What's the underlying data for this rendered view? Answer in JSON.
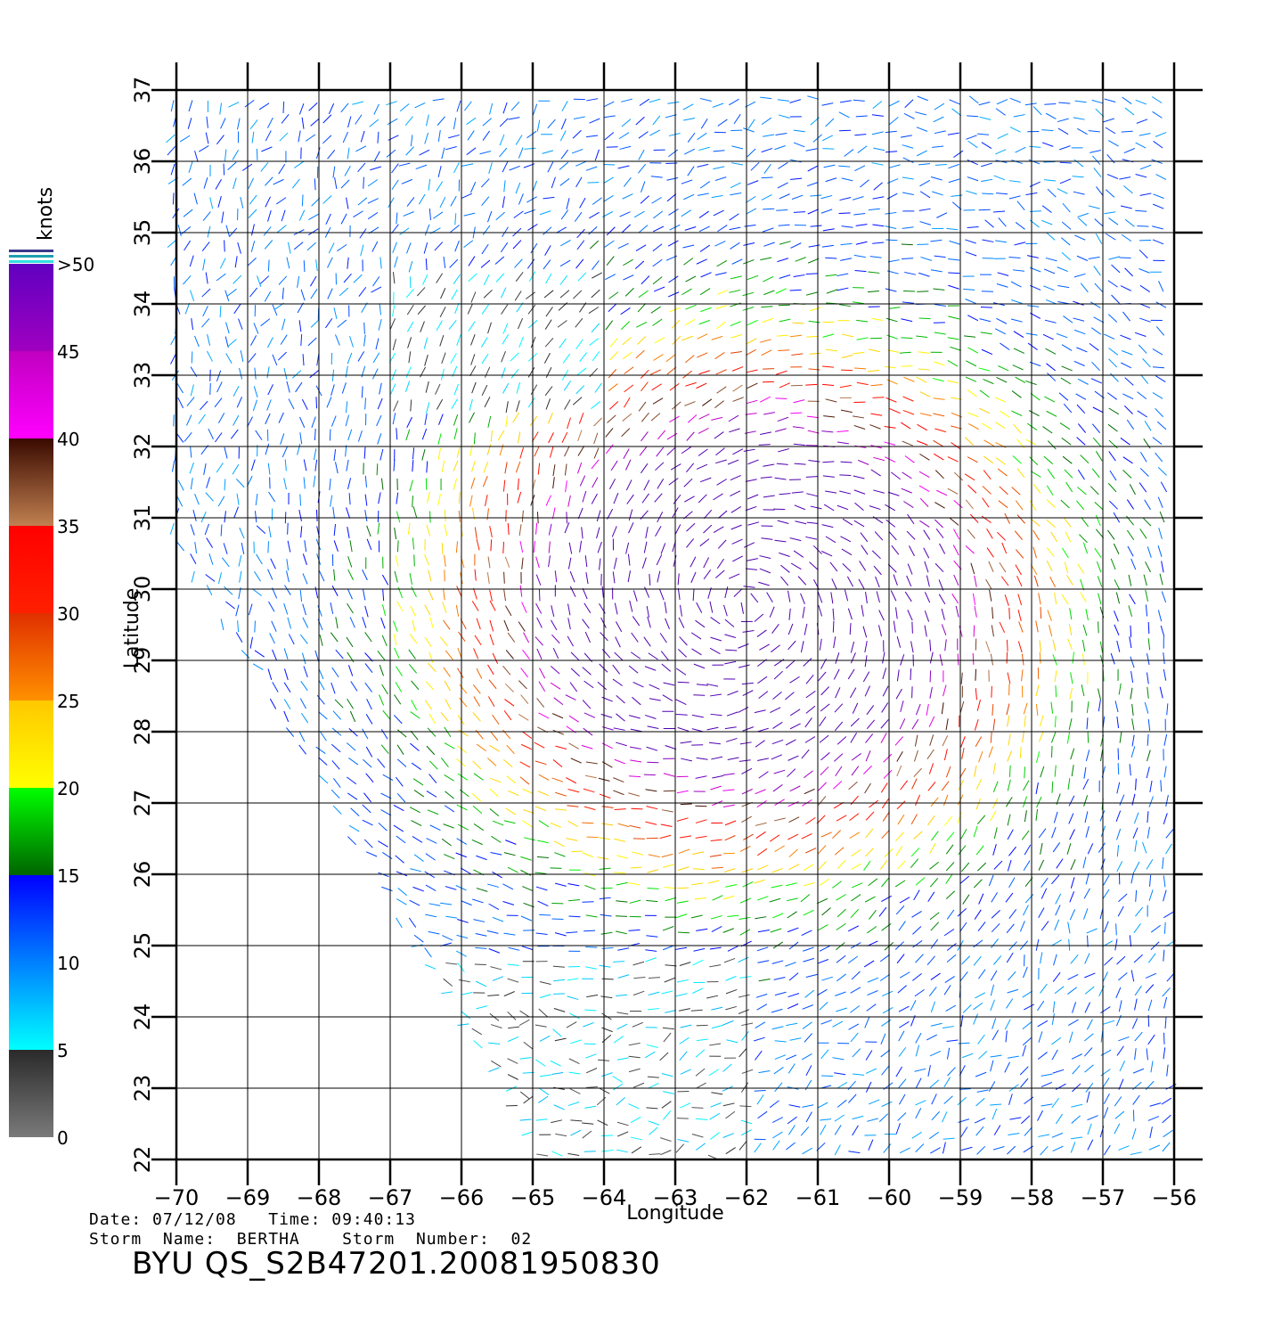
{
  "chart_data": {
    "type": "wind-vector-map",
    "xlabel": "Longitude",
    "ylabel": "Latitude",
    "xlim": [
      -70,
      -56
    ],
    "ylim": [
      22,
      37
    ],
    "x_ticks": [
      "−70",
      "−69",
      "−68",
      "−67",
      "−66",
      "−65",
      "−64",
      "−63",
      "−62",
      "−61",
      "−60",
      "−59",
      "−58",
      "−57",
      "−56"
    ],
    "y_ticks": [
      "22",
      "23",
      "24",
      "25",
      "26",
      "27",
      "28",
      "29",
      "30",
      "31",
      "32",
      "33",
      "34",
      "35",
      "36",
      "37"
    ],
    "grid": true,
    "storm_center": {
      "lon": -62.0,
      "lat": 29.8
    },
    "colorbar": {
      "unit": "knots",
      "labels": [
        "0",
        "5",
        "10",
        "15",
        "20",
        "25",
        "30",
        "35",
        "40",
        "45",
        ">50"
      ],
      "bands": [
        {
          "min": 0,
          "max": 5,
          "colors": [
            "#7a7a7a",
            "#2a2a2a"
          ]
        },
        {
          "min": 5,
          "max": 10,
          "colors": [
            "#00ffff",
            "#0080ff"
          ]
        },
        {
          "min": 10,
          "max": 15,
          "colors": [
            "#0080ff",
            "#0000ff"
          ]
        },
        {
          "min": 15,
          "max": 20,
          "colors": [
            "#006400",
            "#00ff00"
          ]
        },
        {
          "min": 20,
          "max": 25,
          "colors": [
            "#ffff00",
            "#ffc800"
          ]
        },
        {
          "min": 25,
          "max": 30,
          "colors": [
            "#ff9000",
            "#e03000"
          ]
        },
        {
          "min": 30,
          "max": 35,
          "colors": [
            "#ff2000",
            "#ff0000"
          ]
        },
        {
          "min": 35,
          "max": 40,
          "colors": [
            "#c08050",
            "#3a0a00"
          ]
        },
        {
          "min": 40,
          "max": 45,
          "colors": [
            "#ff00ff",
            "#c000c0"
          ]
        },
        {
          "min": 45,
          "max": 50,
          "colors": [
            "#a000c0",
            "#6000c0"
          ]
        }
      ]
    }
  },
  "info": {
    "line1": "Date: 07/12/08   Time: 09:40:13",
    "line2": "Storm  Name:  BERTHA    Storm  Number:  02",
    "product": "BYU  QS_S2B47201.20081950830"
  }
}
